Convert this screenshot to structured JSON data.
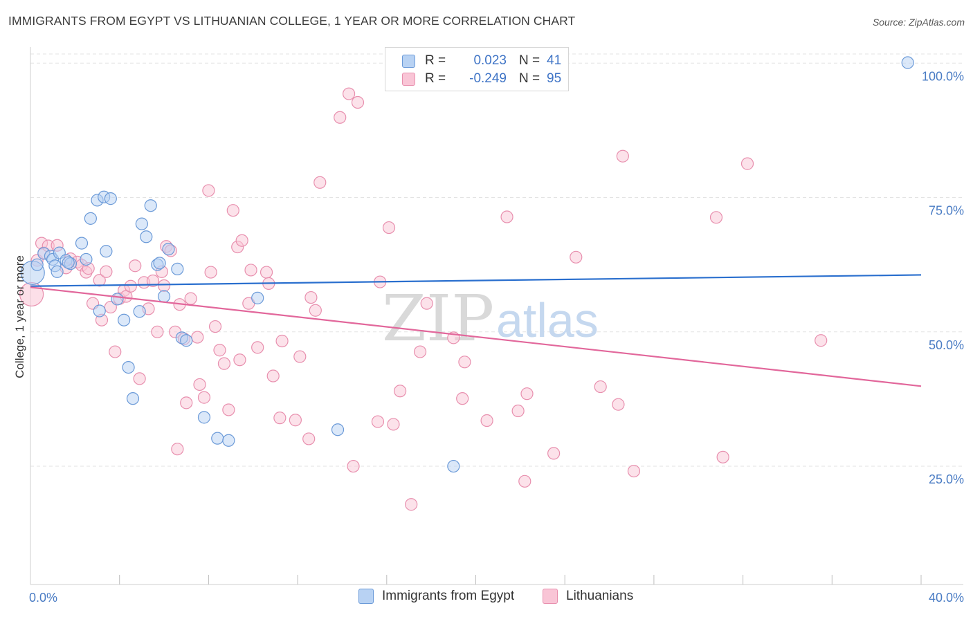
{
  "title": "IMMIGRANTS FROM EGYPT VS LITHUANIAN COLLEGE, 1 YEAR OR MORE CORRELATION CHART",
  "source": "Source: ZipAtlas.com",
  "watermark": {
    "zip": "ZIP",
    "atlas": "atlas"
  },
  "colors": {
    "blue_fill": "#b8d2f3",
    "blue_stroke": "#6b9ad8",
    "blue_line": "#2a6fce",
    "pink_fill": "#f9c5d6",
    "pink_stroke": "#e88fae",
    "pink_line": "#e2679b",
    "tick_text": "#4a7cc4",
    "grid": "#e3e3e3"
  },
  "legend": {
    "series1": {
      "r_label": "R =",
      "r_value": "0.023",
      "n_label": "N =",
      "n_value": "41"
    },
    "series2": {
      "r_label": "R =",
      "r_value": "-0.249",
      "n_label": "N =",
      "n_value": "95"
    }
  },
  "chart_data": {
    "type": "scatter",
    "title": "IMMIGRANTS FROM EGYPT VS LITHUANIAN COLLEGE, 1 YEAR OR MORE CORRELATION CHART",
    "xlabel": "",
    "ylabel": "College, 1 year or more",
    "xlim": [
      0,
      40
    ],
    "ylim": [
      3,
      103
    ],
    "x_tick_labels": [
      {
        "value": 0,
        "label": "0.0%"
      },
      {
        "value": 40,
        "label": "40.0%"
      }
    ],
    "x_minor_ticks": [
      4,
      8,
      12,
      16,
      20,
      24,
      28,
      32,
      36
    ],
    "y_ticks": [
      {
        "value": 25,
        "label": "25.0%"
      },
      {
        "value": 50,
        "label": "50.0%"
      },
      {
        "value": 75,
        "label": "75.0%"
      },
      {
        "value": 100,
        "label": "100.0%"
      }
    ],
    "series": [
      {
        "name": "Immigrants from Egypt",
        "color": "blue",
        "trend": [
          [
            0,
            58.5
          ],
          [
            40,
            60.6
          ]
        ],
        "points": [
          [
            0.1,
            61.0,
            "big"
          ],
          [
            0.3,
            62.5
          ],
          [
            0.6,
            64.6
          ],
          [
            0.9,
            64.1
          ],
          [
            1.0,
            63.5
          ],
          [
            1.1,
            62.3
          ],
          [
            1.2,
            61.2
          ],
          [
            1.3,
            64.7
          ],
          [
            1.6,
            63.3
          ],
          [
            1.8,
            62.7
          ],
          [
            2.3,
            66.5
          ],
          [
            2.5,
            63.5
          ],
          [
            2.7,
            71.1
          ],
          [
            3.0,
            74.5
          ],
          [
            3.3,
            75.1
          ],
          [
            3.6,
            74.8
          ],
          [
            3.4,
            65.0
          ],
          [
            3.1,
            53.9
          ],
          [
            3.9,
            56.1
          ],
          [
            4.2,
            52.2
          ],
          [
            4.4,
            43.4
          ],
          [
            4.6,
            37.6
          ],
          [
            4.9,
            53.8
          ],
          [
            5.0,
            70.1
          ],
          [
            5.2,
            67.7
          ],
          [
            5.4,
            73.5
          ],
          [
            5.7,
            62.5
          ],
          [
            5.8,
            62.8
          ],
          [
            6.0,
            56.6
          ],
          [
            6.2,
            65.4
          ],
          [
            6.6,
            61.7
          ],
          [
            6.8,
            48.9
          ],
          [
            7.0,
            48.4
          ],
          [
            7.8,
            34.1
          ],
          [
            8.4,
            30.2
          ],
          [
            8.9,
            29.8
          ],
          [
            10.2,
            56.3
          ],
          [
            13.8,
            31.8
          ],
          [
            19.0,
            25.0
          ],
          [
            39.4,
            100.1
          ],
          [
            1.7,
            62.9
          ]
        ]
      },
      {
        "name": "Lithuanians",
        "color": "pink",
        "trend": [
          [
            0,
            58.3
          ],
          [
            40,
            39.9
          ]
        ],
        "points": [
          [
            0.05,
            57.0,
            "big"
          ],
          [
            0.3,
            63.3
          ],
          [
            0.5,
            66.5
          ],
          [
            0.6,
            64.7
          ],
          [
            0.8,
            66.0
          ],
          [
            1.2,
            66.1
          ],
          [
            1.6,
            61.9
          ],
          [
            1.8,
            63.6
          ],
          [
            2.1,
            63.0
          ],
          [
            2.3,
            62.4
          ],
          [
            2.5,
            61.1
          ],
          [
            2.6,
            61.8
          ],
          [
            2.8,
            55.3
          ],
          [
            3.1,
            59.6
          ],
          [
            3.2,
            52.2
          ],
          [
            3.4,
            61.2
          ],
          [
            3.6,
            54.6
          ],
          [
            3.8,
            46.3
          ],
          [
            4.0,
            56.2
          ],
          [
            4.2,
            57.7
          ],
          [
            4.3,
            56.6
          ],
          [
            4.5,
            58.5
          ],
          [
            4.7,
            62.3
          ],
          [
            4.9,
            41.3
          ],
          [
            5.1,
            59.2
          ],
          [
            5.3,
            54.3
          ],
          [
            5.5,
            59.5
          ],
          [
            5.7,
            50.0
          ],
          [
            5.9,
            61.2
          ],
          [
            6.0,
            58.6
          ],
          [
            6.1,
            65.9
          ],
          [
            6.3,
            65.1
          ],
          [
            6.5,
            50.0
          ],
          [
            6.6,
            28.2
          ],
          [
            6.7,
            55.1
          ],
          [
            6.9,
            48.7
          ],
          [
            7.0,
            36.8
          ],
          [
            7.2,
            56.2
          ],
          [
            7.5,
            49.0
          ],
          [
            7.6,
            40.2
          ],
          [
            7.8,
            37.8
          ],
          [
            8.0,
            76.3
          ],
          [
            8.1,
            61.1
          ],
          [
            8.3,
            51.0
          ],
          [
            8.5,
            46.6
          ],
          [
            8.7,
            44.1
          ],
          [
            8.9,
            35.5
          ],
          [
            9.1,
            72.6
          ],
          [
            9.3,
            65.8
          ],
          [
            9.4,
            44.8
          ],
          [
            9.5,
            67.0
          ],
          [
            9.8,
            55.3
          ],
          [
            9.9,
            61.5
          ],
          [
            10.2,
            47.1
          ],
          [
            10.6,
            61.1
          ],
          [
            10.7,
            59.0
          ],
          [
            10.9,
            41.8
          ],
          [
            11.2,
            34.0
          ],
          [
            11.3,
            48.3
          ],
          [
            11.9,
            33.6
          ],
          [
            12.1,
            45.4
          ],
          [
            12.5,
            30.1
          ],
          [
            12.6,
            56.4
          ],
          [
            12.8,
            54.0
          ],
          [
            13.0,
            77.8
          ],
          [
            13.9,
            89.9
          ],
          [
            14.3,
            94.3
          ],
          [
            14.5,
            25.0
          ],
          [
            14.7,
            92.7
          ],
          [
            15.6,
            33.3
          ],
          [
            15.7,
            59.3
          ],
          [
            16.1,
            69.4
          ],
          [
            16.3,
            32.8
          ],
          [
            16.6,
            39.0
          ],
          [
            17.1,
            17.9
          ],
          [
            17.5,
            46.3
          ],
          [
            17.8,
            55.3
          ],
          [
            19.0,
            48.9
          ],
          [
            19.4,
            37.6
          ],
          [
            19.5,
            44.4
          ],
          [
            20.5,
            33.5
          ],
          [
            21.4,
            71.4
          ],
          [
            21.9,
            35.3
          ],
          [
            22.2,
            22.2
          ],
          [
            22.3,
            38.5
          ],
          [
            23.5,
            27.4
          ],
          [
            24.5,
            63.9
          ],
          [
            25.6,
            39.8
          ],
          [
            26.4,
            36.5
          ],
          [
            26.6,
            82.7
          ],
          [
            27.1,
            24.1
          ],
          [
            30.8,
            71.3
          ],
          [
            31.1,
            26.7
          ],
          [
            32.2,
            81.3
          ],
          [
            35.5,
            48.4
          ]
        ]
      }
    ]
  },
  "bottom_legend": {
    "item1": "Immigrants from Egypt",
    "item2": "Lithuanians"
  }
}
